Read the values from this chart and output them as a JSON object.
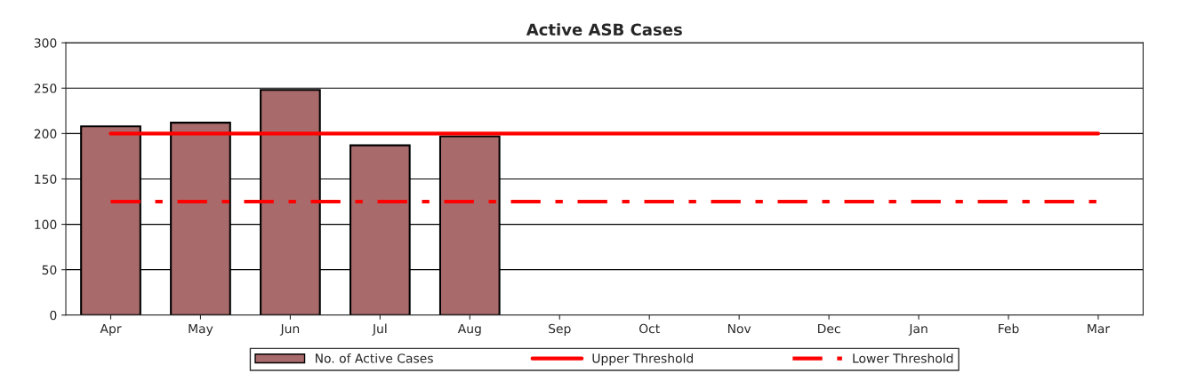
{
  "chart_data": {
    "type": "bar",
    "title": "Active ASB Cases",
    "categories": [
      "Apr",
      "May",
      "Jun",
      "Jul",
      "Aug",
      "Sep",
      "Oct",
      "Nov",
      "Dec",
      "Jan",
      "Feb",
      "Mar"
    ],
    "series": [
      {
        "name": "No. of Active Cases",
        "color": "#a86a6a",
        "values": [
          208,
          212,
          248,
          187,
          197,
          null,
          null,
          null,
          null,
          null,
          null,
          null
        ]
      },
      {
        "name": "Upper Threshold",
        "type": "line",
        "color": "#ff0000",
        "line_style": "solid",
        "values": [
          200,
          200,
          200,
          200,
          200,
          200,
          200,
          200,
          200,
          200,
          200,
          200
        ]
      },
      {
        "name": "Lower Threshold",
        "type": "line",
        "color": "#ff0000",
        "line_style": "dashed",
        "values": [
          125,
          125,
          125,
          125,
          125,
          125,
          125,
          125,
          125,
          125,
          125,
          125
        ]
      }
    ],
    "ylim": [
      0,
      300
    ],
    "yticks": [
      0,
      50,
      100,
      150,
      200,
      250,
      300
    ],
    "grid": "y",
    "legend": "bottom",
    "marker": "none"
  }
}
